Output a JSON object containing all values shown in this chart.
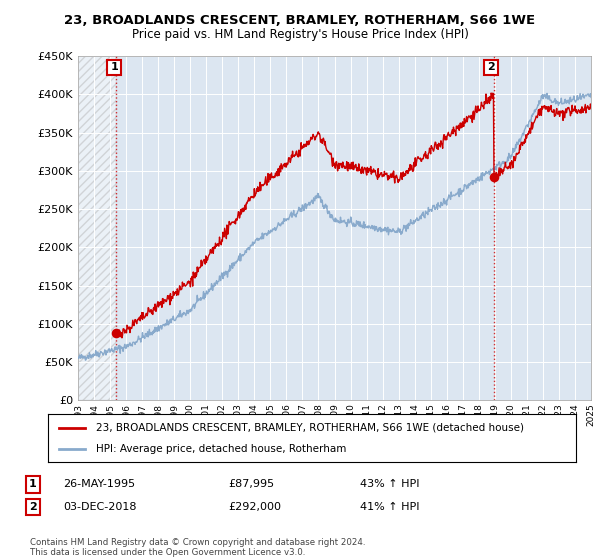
{
  "title_line1": "23, BROADLANDS CRESCENT, BRAMLEY, ROTHERHAM, S66 1WE",
  "title_line2": "Price paid vs. HM Land Registry's House Price Index (HPI)",
  "ylim": [
    0,
    450000
  ],
  "yticks": [
    0,
    50000,
    100000,
    150000,
    200000,
    250000,
    300000,
    350000,
    400000,
    450000
  ],
  "ytick_labels": [
    "£0",
    "£50K",
    "£100K",
    "£150K",
    "£200K",
    "£250K",
    "£300K",
    "£350K",
    "£400K",
    "£450K"
  ],
  "x_start_year": 1993,
  "x_end_year": 2025,
  "transaction1_date": 1995.4,
  "transaction1_price": 87995,
  "transaction1_label": "1",
  "transaction2_date": 2018.92,
  "transaction2_price": 292000,
  "transaction2_label": "2",
  "hpi_color": "#89aacc",
  "property_color": "#cc0000",
  "background_color": "#dce6f1",
  "grid_color": "#ffffff",
  "legend_label_property": "23, BROADLANDS CRESCENT, BRAMLEY, ROTHERHAM, S66 1WE (detached house)",
  "legend_label_hpi": "HPI: Average price, detached house, Rotherham",
  "annotation1_date": "26-MAY-1995",
  "annotation1_price": "£87,995",
  "annotation1_hpi": "43% ↑ HPI",
  "annotation2_date": "03-DEC-2018",
  "annotation2_price": "£292,000",
  "annotation2_hpi": "41% ↑ HPI",
  "footnote": "Contains HM Land Registry data © Crown copyright and database right 2024.\nThis data is licensed under the Open Government Licence v3.0."
}
